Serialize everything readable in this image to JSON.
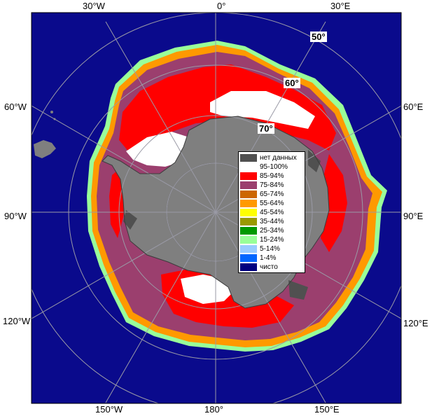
{
  "map": {
    "ocean_color": "#0a0a8c",
    "land_color": "#7f7f7f",
    "frame_color": "#000000",
    "grid_color": "#9a9aa6"
  },
  "longitude_labels": {
    "w30": "30°W",
    "zero": "0°",
    "e30": "30°E",
    "w60": "60°W",
    "e60": "60°E",
    "w90": "90°W",
    "e90": "90°E",
    "w120": "120°W",
    "e120": "120°E",
    "w150": "150°W",
    "lon180": "180°",
    "e150": "150°E"
  },
  "latitude_labels": {
    "lat50": "50°",
    "lat60": "60°",
    "lat70": "70°"
  },
  "legend": [
    {
      "label": "нет данных",
      "color": "#505050"
    },
    {
      "label": "95-100%",
      "color": "#ffffff"
    },
    {
      "label": "85-94%",
      "color": "#ff0000"
    },
    {
      "label": "75-84%",
      "color": "#9b3f6e"
    },
    {
      "label": "65-74%",
      "color": "#cc6600"
    },
    {
      "label": "55-64%",
      "color": "#ff9900"
    },
    {
      "label": "45-54%",
      "color": "#ffff00"
    },
    {
      "label": "35-44%",
      "color": "#999900"
    },
    {
      "label": "25-34%",
      "color": "#009900"
    },
    {
      "label": "15-24%",
      "color": "#99ff99"
    },
    {
      "label": "5-14%",
      "color": "#99ccff"
    },
    {
      "label": "1-4%",
      "color": "#0066ff"
    },
    {
      "label": "чисто",
      "color": "#000080"
    }
  ]
}
